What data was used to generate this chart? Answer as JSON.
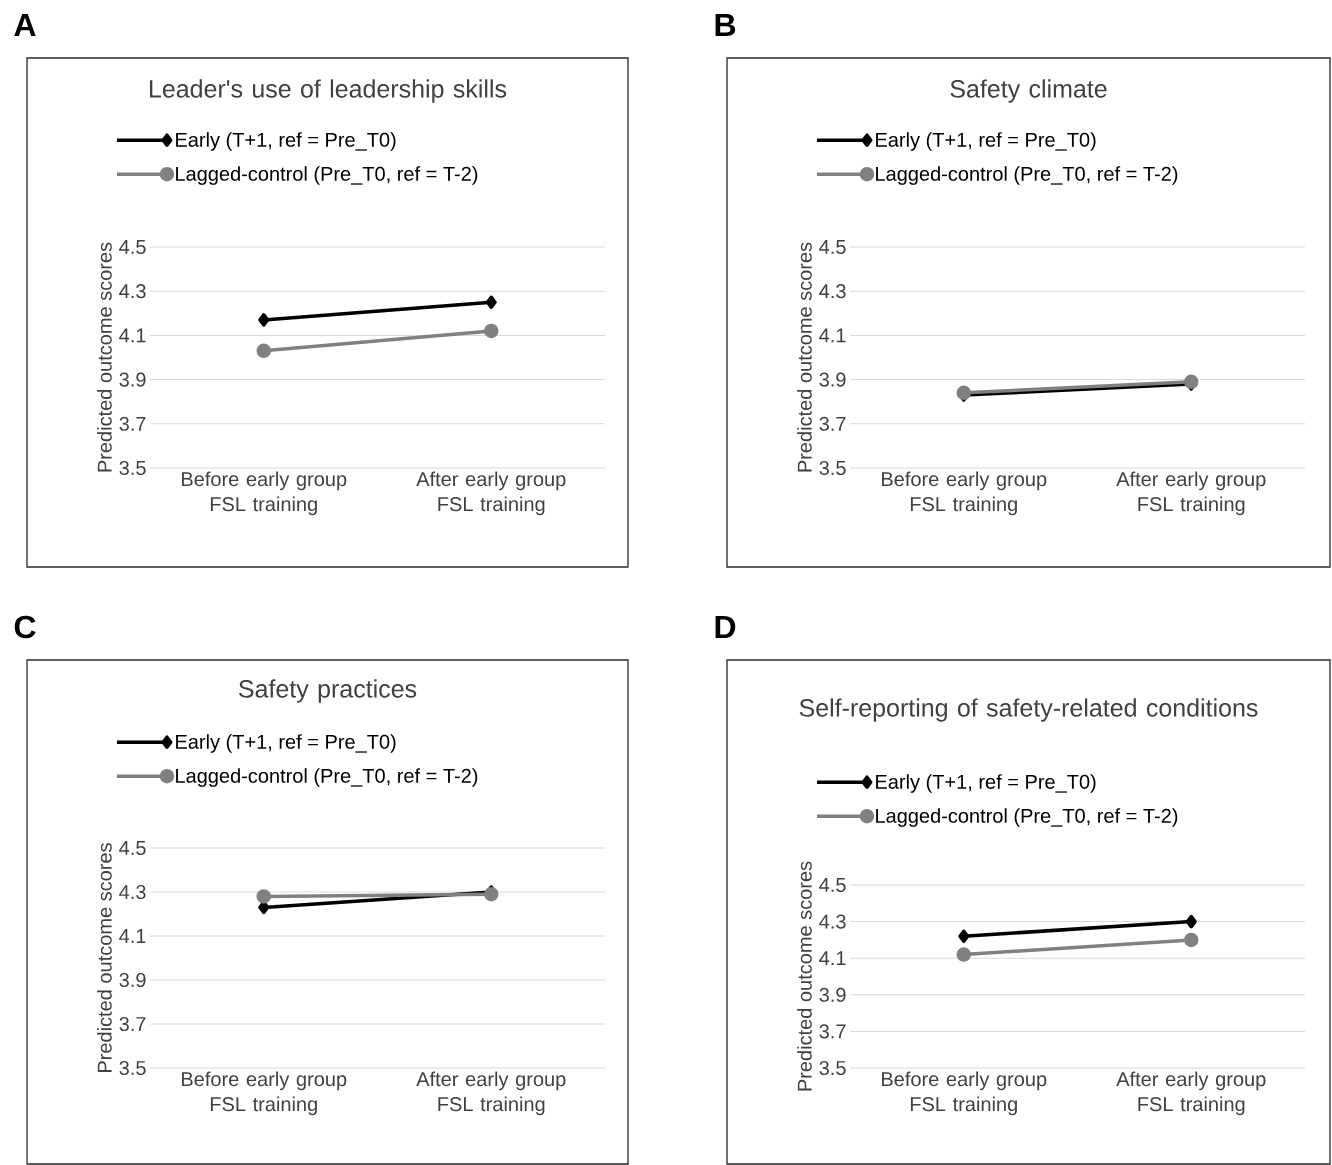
{
  "chart_data": [
    {
      "type": "line",
      "title": "Leader's use of leadership skills",
      "ylabel": "Predicted outcome scores",
      "annotations": [
        "A"
      ],
      "categories": [
        "Before early group FSL training",
        "After early group FSL training"
      ],
      "ylim": [
        3.5,
        4.5
      ],
      "yticks": [
        3.5,
        3.7,
        3.9,
        4.1,
        4.3,
        4.5
      ],
      "grid": "y",
      "legend": "top left",
      "series": [
        {
          "name": "Early (T+1, ref = Pre_T0)",
          "color": "#000000",
          "marker": "diamond",
          "values": [
            4.17,
            4.25
          ]
        },
        {
          "name": "Lagged-control (Pre_T0, ref = T-2)",
          "color": "#808080",
          "marker": "circle",
          "values": [
            4.03,
            4.12
          ]
        }
      ]
    },
    {
      "type": "line",
      "title": "Safety climate",
      "ylabel": "Predicted outcome scores",
      "annotations": [
        "B"
      ],
      "categories": [
        "Before early group FSL training",
        "After early group FSL training"
      ],
      "ylim": [
        3.5,
        4.5
      ],
      "yticks": [
        3.5,
        3.7,
        3.9,
        4.1,
        4.3,
        4.5
      ],
      "grid": "y",
      "legend": "top left",
      "series": [
        {
          "name": "Early (T+1, ref = Pre_T0)",
          "color": "#000000",
          "marker": "diamond",
          "values": [
            3.83,
            3.88
          ]
        },
        {
          "name": "Lagged-control (Pre_T0, ref = T-2)",
          "color": "#808080",
          "marker": "circle",
          "values": [
            3.84,
            3.89
          ]
        }
      ]
    },
    {
      "type": "line",
      "title": "Safety practices",
      "ylabel": "Predicted outcome scores",
      "annotations": [
        "C"
      ],
      "categories": [
        "Before early group FSL training",
        "After early group FSL training"
      ],
      "ylim": [
        3.5,
        4.5
      ],
      "yticks": [
        3.5,
        3.7,
        3.9,
        4.1,
        4.3,
        4.5
      ],
      "grid": "y",
      "legend": "top left",
      "series": [
        {
          "name": "Early (T+1, ref = Pre_T0)",
          "color": "#000000",
          "marker": "diamond",
          "values": [
            4.23,
            4.3
          ]
        },
        {
          "name": "Lagged-control (Pre_T0, ref = T-2)",
          "color": "#808080",
          "marker": "circle",
          "values": [
            4.28,
            4.29
          ]
        }
      ]
    },
    {
      "type": "line",
      "title": "Self-reporting of safety-related conditions",
      "ylabel": "Predicted outcome scores",
      "annotations": [
        "D"
      ],
      "categories": [
        "Before early group FSL training",
        "After early group FSL training"
      ],
      "ylim": [
        3.5,
        4.5
      ],
      "yticks": [
        3.5,
        3.7,
        3.9,
        4.1,
        4.3,
        4.5
      ],
      "grid": "y",
      "legend": "top left",
      "series": [
        {
          "name": "Early (T+1, ref = Pre_T0)",
          "color": "#000000",
          "marker": "diamond",
          "values": [
            4.22,
            4.3
          ]
        },
        {
          "name": "Lagged-control (Pre_T0, ref = T-2)",
          "color": "#808080",
          "marker": "circle",
          "values": [
            4.12,
            4.2
          ]
        }
      ]
    }
  ]
}
